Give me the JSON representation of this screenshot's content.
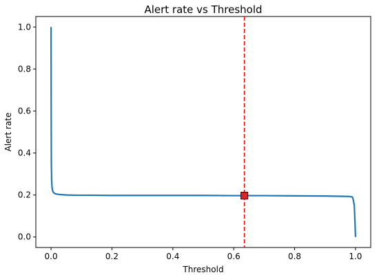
{
  "chart_data": {
    "type": "line",
    "title": "Alert rate vs Threshold",
    "xlabel": "Threshold",
    "ylabel": "Alert rate",
    "xlim": [
      -0.05,
      1.05
    ],
    "ylim": [
      -0.05,
      1.05
    ],
    "xticks": [
      0.0,
      0.2,
      0.4,
      0.6,
      0.8,
      1.0
    ],
    "yticks": [
      0.0,
      0.2,
      0.4,
      0.6,
      0.8,
      1.0
    ],
    "xtick_labels": [
      "0.0",
      "0.2",
      "0.4",
      "0.6",
      "0.8",
      "1.0"
    ],
    "ytick_labels": [
      "0.0",
      "0.2",
      "0.4",
      "0.6",
      "0.8",
      "1.0"
    ],
    "grid": false,
    "series": [
      {
        "color": "#1f77b4",
        "x": [
          0.0,
          0.0005,
          0.001,
          0.002,
          0.003,
          0.005,
          0.008,
          0.012,
          0.02,
          0.03,
          0.05,
          0.08,
          0.12,
          0.2,
          0.3,
          0.4,
          0.5,
          0.6,
          0.635,
          0.7,
          0.8,
          0.9,
          0.95,
          0.975,
          0.985,
          0.99,
          0.993,
          0.996,
          0.998,
          1.0
        ],
        "y": [
          1.0,
          0.6,
          0.35,
          0.27,
          0.24,
          0.22,
          0.212,
          0.207,
          0.204,
          0.202,
          0.2,
          0.199,
          0.199,
          0.198,
          0.198,
          0.198,
          0.198,
          0.197,
          0.197,
          0.197,
          0.196,
          0.195,
          0.194,
          0.193,
          0.192,
          0.19,
          0.175,
          0.15,
          0.08,
          0.0
        ]
      }
    ],
    "vline": {
      "x": 0.635,
      "color": "#ff0000",
      "style": "dashed"
    },
    "marker": {
      "x": 0.635,
      "y": 0.197,
      "shape": "square",
      "fill": "#d62728",
      "edge": "#000000"
    }
  }
}
